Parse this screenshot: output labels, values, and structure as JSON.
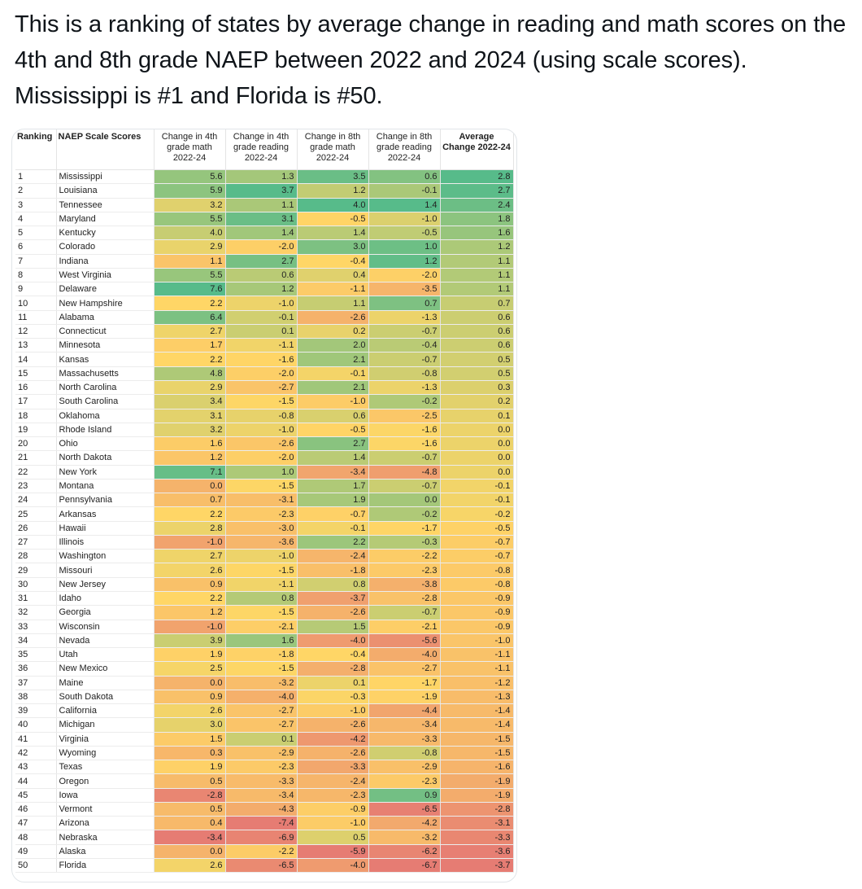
{
  "tweet": {
    "text": "This is a ranking of states by average change in reading and math scores on the 4th and 8th grade NAEP between 2022 and 2024 (using scale scores). Mississippi is #1 and Florida is #50."
  },
  "table": {
    "headers": [
      "Ranking",
      "NAEP Scale Scores",
      "Change in 4th grade math 2022-24",
      "Change in 4th grade reading 2022-24",
      "Change in 8th grade math 2022-24",
      "Change in 8th grade reading 2022-24",
      "Average Change 2022-24"
    ],
    "colors": {
      "low": "#e67c73",
      "mid": "#ffd666",
      "high": "#57bb8a"
    },
    "rows": [
      [
        "1",
        "Mississippi",
        "5.6",
        "1.3",
        "3.5",
        "0.6",
        "2.8"
      ],
      [
        "2",
        "Louisiana",
        "5.9",
        "3.7",
        "1.2",
        "-0.1",
        "2.7"
      ],
      [
        "3",
        "Tennessee",
        "3.2",
        "1.1",
        "4.0",
        "1.4",
        "2.4"
      ],
      [
        "4",
        "Maryland",
        "5.5",
        "3.1",
        "-0.5",
        "-1.0",
        "1.8"
      ],
      [
        "5",
        "Kentucky",
        "4.0",
        "1.4",
        "1.4",
        "-0.5",
        "1.6"
      ],
      [
        "6",
        "Colorado",
        "2.9",
        "-2.0",
        "3.0",
        "1.0",
        "1.2"
      ],
      [
        "7",
        "Indiana",
        "1.1",
        "2.7",
        "-0.4",
        "1.2",
        "1.1"
      ],
      [
        "8",
        "West Virginia",
        "5.5",
        "0.6",
        "0.4",
        "-2.0",
        "1.1"
      ],
      [
        "9",
        "Delaware",
        "7.6",
        "1.2",
        "-1.1",
        "-3.5",
        "1.1"
      ],
      [
        "10",
        "New Hampshire",
        "2.2",
        "-1.0",
        "1.1",
        "0.7",
        "0.7"
      ],
      [
        "11",
        "Alabama",
        "6.4",
        "-0.1",
        "-2.6",
        "-1.3",
        "0.6"
      ],
      [
        "12",
        "Connecticut",
        "2.7",
        "0.1",
        "0.2",
        "-0.7",
        "0.6"
      ],
      [
        "13",
        "Minnesota",
        "1.7",
        "-1.1",
        "2.0",
        "-0.4",
        "0.6"
      ],
      [
        "14",
        "Kansas",
        "2.2",
        "-1.6",
        "2.1",
        "-0.7",
        "0.5"
      ],
      [
        "15",
        "Massachusetts",
        "4.8",
        "-2.0",
        "-0.1",
        "-0.8",
        "0.5"
      ],
      [
        "16",
        "North Carolina",
        "2.9",
        "-2.7",
        "2.1",
        "-1.3",
        "0.3"
      ],
      [
        "17",
        "South Carolina",
        "3.4",
        "-1.5",
        "-1.0",
        "-0.2",
        "0.2"
      ],
      [
        "18",
        "Oklahoma",
        "3.1",
        "-0.8",
        "0.6",
        "-2.5",
        "0.1"
      ],
      [
        "19",
        "Rhode Island",
        "3.2",
        "-1.0",
        "-0.5",
        "-1.6",
        "0.0"
      ],
      [
        "20",
        "Ohio",
        "1.6",
        "-2.6",
        "2.7",
        "-1.6",
        "0.0"
      ],
      [
        "21",
        "North Dakota",
        "1.2",
        "-2.0",
        "1.4",
        "-0.7",
        "0.0"
      ],
      [
        "22",
        "New York",
        "7.1",
        "1.0",
        "-3.4",
        "-4.8",
        "0.0"
      ],
      [
        "23",
        "Montana",
        "0.0",
        "-1.5",
        "1.7",
        "-0.7",
        "-0.1"
      ],
      [
        "24",
        "Pennsylvania",
        "0.7",
        "-3.1",
        "1.9",
        "0.0",
        "-0.1"
      ],
      [
        "25",
        "Arkansas",
        "2.2",
        "-2.3",
        "-0.7",
        "-0.2",
        "-0.2"
      ],
      [
        "26",
        "Hawaii",
        "2.8",
        "-3.0",
        "-0.1",
        "-1.7",
        "-0.5"
      ],
      [
        "27",
        "Illinois",
        "-1.0",
        "-3.6",
        "2.2",
        "-0.3",
        "-0.7"
      ],
      [
        "28",
        "Washington",
        "2.7",
        "-1.0",
        "-2.4",
        "-2.2",
        "-0.7"
      ],
      [
        "29",
        "Missouri",
        "2.6",
        "-1.5",
        "-1.8",
        "-2.3",
        "-0.8"
      ],
      [
        "30",
        "New Jersey",
        "0.9",
        "-1.1",
        "0.8",
        "-3.8",
        "-0.8"
      ],
      [
        "31",
        "Idaho",
        "2.2",
        "0.8",
        "-3.7",
        "-2.8",
        "-0.9"
      ],
      [
        "32",
        "Georgia",
        "1.2",
        "-1.5",
        "-2.6",
        "-0.7",
        "-0.9"
      ],
      [
        "33",
        "Wisconsin",
        "-1.0",
        "-2.1",
        "1.5",
        "-2.1",
        "-0.9"
      ],
      [
        "34",
        "Nevada",
        "3.9",
        "1.6",
        "-4.0",
        "-5.6",
        "-1.0"
      ],
      [
        "35",
        "Utah",
        "1.9",
        "-1.8",
        "-0.4",
        "-4.0",
        "-1.1"
      ],
      [
        "36",
        "New Mexico",
        "2.5",
        "-1.5",
        "-2.8",
        "-2.7",
        "-1.1"
      ],
      [
        "37",
        "Maine",
        "0.0",
        "-3.2",
        "0.1",
        "-1.7",
        "-1.2"
      ],
      [
        "38",
        "South Dakota",
        "0.9",
        "-4.0",
        "-0.3",
        "-1.9",
        "-1.3"
      ],
      [
        "39",
        "California",
        "2.6",
        "-2.7",
        "-1.0",
        "-4.4",
        "-1.4"
      ],
      [
        "40",
        "Michigan",
        "3.0",
        "-2.7",
        "-2.6",
        "-3.4",
        "-1.4"
      ],
      [
        "41",
        "Virginia",
        "1.5",
        "0.1",
        "-4.2",
        "-3.3",
        "-1.5"
      ],
      [
        "42",
        "Wyoming",
        "0.3",
        "-2.9",
        "-2.6",
        "-0.8",
        "-1.5"
      ],
      [
        "43",
        "Texas",
        "1.9",
        "-2.3",
        "-3.3",
        "-2.9",
        "-1.6"
      ],
      [
        "44",
        "Oregon",
        "0.5",
        "-3.3",
        "-2.4",
        "-2.3",
        "-1.9"
      ],
      [
        "45",
        "Iowa",
        "-2.8",
        "-3.4",
        "-2.3",
        "0.9",
        "-1.9"
      ],
      [
        "46",
        "Vermont",
        "0.5",
        "-4.3",
        "-0.9",
        "-6.5",
        "-2.8"
      ],
      [
        "47",
        "Arizona",
        "0.4",
        "-7.4",
        "-1.0",
        "-4.2",
        "-3.1"
      ],
      [
        "48",
        "Nebraska",
        "-3.4",
        "-6.9",
        "0.5",
        "-3.2",
        "-3.3"
      ],
      [
        "49",
        "Alaska",
        "0.0",
        "-2.2",
        "-5.9",
        "-6.2",
        "-3.6"
      ],
      [
        "50",
        "Florida",
        "2.6",
        "-6.5",
        "-4.0",
        "-6.7",
        "-3.7"
      ]
    ]
  }
}
